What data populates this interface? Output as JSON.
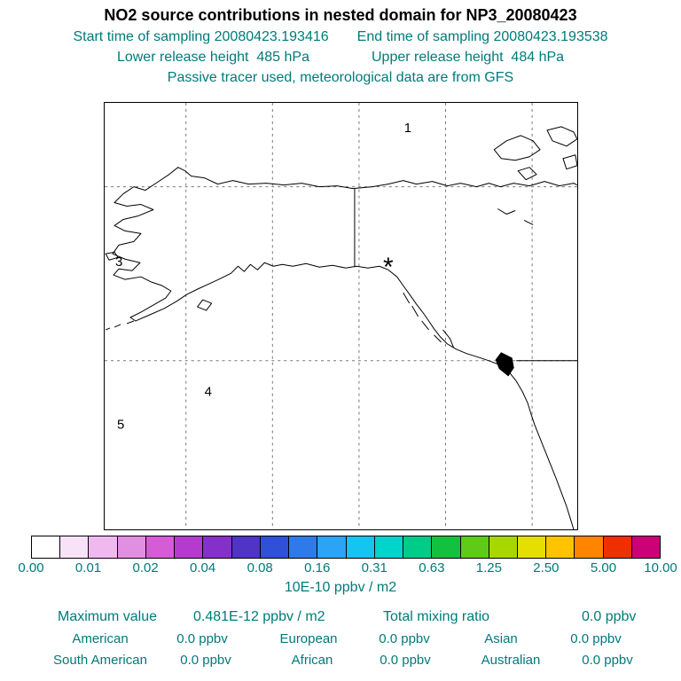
{
  "chart_data": {
    "type": "heatmap",
    "title": "NO2 source contributions in nested domain for NP3_20080423",
    "subtitle_lines": [
      "Start time of sampling 20080423.193416   End time of sampling 20080423.193538",
      "Lower release height  485 hPa   Upper release height  484 hPa",
      "Passive tracer used, meteorological data are from GFS"
    ],
    "colorbar": {
      "tick_values": [
        0,
        0.01,
        0.02,
        0.04,
        0.08,
        0.16,
        0.31,
        0.63,
        1.25,
        2.5,
        5,
        10
      ],
      "units": "10E-10 ppbv / m2"
    },
    "map_annotations": {
      "region_numbers": [
        "1",
        "3",
        "4",
        "5"
      ],
      "release_marker": "*"
    },
    "values": {
      "maximum_value": "0.481E-12 ppbv / m2",
      "total_mixing_ratio": "0.0 ppbv",
      "contributions": [
        {
          "source": "American",
          "value_ppbv": 0.0
        },
        {
          "source": "European",
          "value_ppbv": 0.0
        },
        {
          "source": "Asian",
          "value_ppbv": 0.0
        },
        {
          "source": "South American",
          "value_ppbv": 0.0
        },
        {
          "source": "African",
          "value_ppbv": 0.0
        },
        {
          "source": "Australian",
          "value_ppbv": 0.0
        }
      ]
    },
    "field_note": "No concentration shading visible on map"
  },
  "header": {
    "title": "NO2 source contributions in nested domain for NP3_20080423",
    "line1_left": "Start time of sampling 20080423.193416",
    "line1_right": "End time of sampling 20080423.193538",
    "line2_left": "Lower release height  485 hPa",
    "line2_right": "Upper release height  484 hPa",
    "line3": "Passive tracer used, meteorological data are from GFS"
  },
  "map": {
    "region_labels": [
      "1",
      "3",
      "4",
      "5"
    ],
    "release_marker": "*"
  },
  "colorbar": {
    "segments": [
      "#ffffff",
      "#f7e2f7",
      "#efb8ef",
      "#e28fe2",
      "#d55cd5",
      "#b53bce",
      "#8531c9",
      "#4f34c6",
      "#3050d8",
      "#2f7ae9",
      "#2ca3f4",
      "#14c4f1",
      "#00d5cb",
      "#00cc8a",
      "#14c13e",
      "#5fca18",
      "#a8d700",
      "#e5df00",
      "#ffc300",
      "#ff8500",
      "#ee3000",
      "#cc0077"
    ],
    "ticks": [
      "0.00",
      "0.01",
      "0.02",
      "0.04",
      "0.08",
      "0.16",
      "0.31",
      "0.63",
      "1.25",
      "2.50",
      "5.00",
      "10.00"
    ],
    "units_label": "10E-10 ppbv / m2"
  },
  "stats": {
    "max_label": "Maximum value",
    "max_value": "0.481E-12 ppbv / m2",
    "total_label": "Total mixing ratio",
    "total_value": "0.0 ppbv",
    "contributions": [
      {
        "label": "American",
        "value": "0.0 ppbv"
      },
      {
        "label": "European",
        "value": "0.0 ppbv"
      },
      {
        "label": "Asian",
        "value": "0.0 ppbv"
      },
      {
        "label": "South American",
        "value": "0.0 ppbv"
      },
      {
        "label": "African",
        "value": "0.0 ppbv"
      },
      {
        "label": "Australian",
        "value": "0.0 ppbv"
      }
    ]
  },
  "colors": {
    "teal_text": "#007a7a",
    "map_outline": "#000000"
  }
}
